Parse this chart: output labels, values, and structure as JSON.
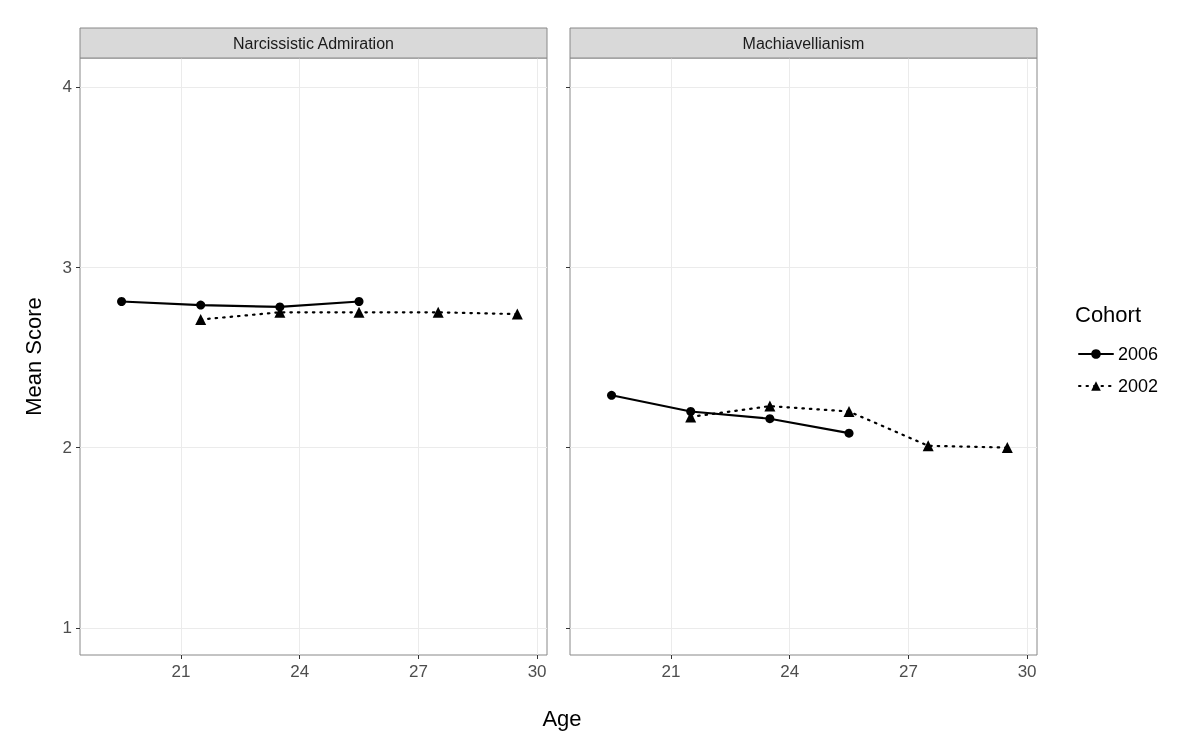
{
  "chart_data": [
    {
      "type": "line",
      "title": "Narcissistic Admiration",
      "xlabel": "Age",
      "ylabel": "Mean Score",
      "xlim": [
        18.45,
        30.25
      ],
      "ylim": [
        0.85,
        4.16
      ],
      "xticks": [
        21,
        24,
        27,
        30
      ],
      "yticks": [
        1,
        2,
        3,
        4
      ],
      "grid": true,
      "legend": false,
      "series": [
        {
          "color": "#000000",
          "marker": "circle",
          "line_style": "solid",
          "x": [
            19.5,
            21.5,
            23.5,
            25.5
          ],
          "values": [
            2.81,
            2.79,
            2.78,
            2.81
          ]
        },
        {
          "color": "#000000",
          "marker": "triangle",
          "line_style": "dotted",
          "x": [
            21.5,
            23.5,
            25.5,
            27.5,
            29.5
          ],
          "values": [
            2.71,
            2.75,
            2.75,
            2.75,
            2.74
          ]
        }
      ]
    },
    {
      "type": "line",
      "title": "Machiavellianism",
      "legend_title": "Cohort",
      "xlim": [
        18.45,
        30.25
      ],
      "ylim": [
        0.85,
        4.16
      ],
      "xticks": [
        21,
        24,
        27,
        30
      ],
      "yticks": [
        1,
        2,
        3,
        4
      ],
      "grid": true,
      "legend": "right",
      "tick_labels": "x",
      "series": [
        {
          "name": "2006",
          "color": "#000000",
          "marker": "circle",
          "line_style": "solid",
          "x": [
            19.5,
            21.5,
            23.5,
            25.5
          ],
          "values": [
            2.29,
            2.2,
            2.16,
            2.08
          ]
        },
        {
          "name": "2002",
          "color": "#000000",
          "marker": "triangle",
          "line_style": "dotted",
          "x": [
            21.5,
            23.5,
            25.5,
            27.5,
            29.5
          ],
          "values": [
            2.17,
            2.23,
            2.2,
            2.01,
            2.0
          ]
        }
      ]
    }
  ]
}
